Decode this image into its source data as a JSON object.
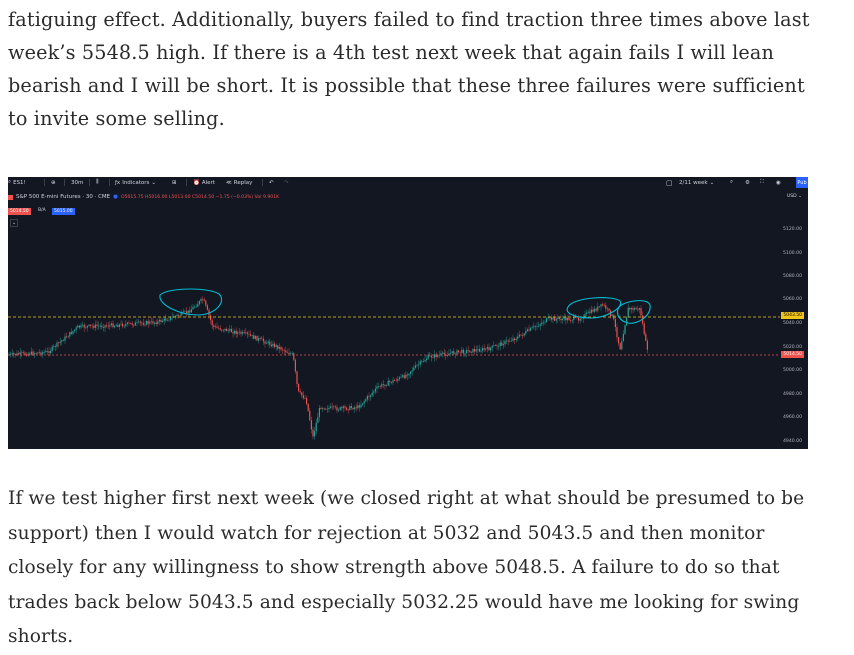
{
  "article": {
    "para1": "fatiguing effect. Additionally, buyers failed to find traction three times above last week’s 5548.5 high. If there is a 4th test next week that again fails I will lean bearish and I will be short. It is possible that these three failures were sufficient to invite some selling.",
    "para2": "If we test higher first next week (we closed right at what should be presumed to be support) then I would watch for rejection at 5032 and 5043.5 and then monitor closely for any willingness to show strength above 5048.5. A failure to do so that trades back below 5043.5 and especially 5032.25 would have me looking for swing shorts."
  },
  "toolbar": {
    "symbol": "ES1!",
    "interval": "30m",
    "indicators": "Indicators",
    "alert": "Alert",
    "replay": "Replay",
    "range": "2/11 week",
    "publish": "Pub"
  },
  "legend": {
    "title": "S&P 500 E-mini Futures · 30 · CME",
    "ohlc": "O5015.75 H5016.00 L5013.00 C5014.50 −1.75 (−0.03%) Vol 9.901K",
    "sell_price": "5014.50",
    "sell_label": "B/A",
    "buy_price": "5015.00"
  },
  "price_axis": {
    "currency": "USD",
    "labels": [
      "5120.00",
      "5100.00",
      "5080.00",
      "5060.00",
      "5040.00",
      "5020.00",
      "5000.00",
      "4980.00",
      "4960.00",
      "4940.00"
    ],
    "tag_yellow": "5043.50",
    "tag_red": "5014.50"
  },
  "colors": {
    "bg": "#131722",
    "up": "#26a69a",
    "down": "#ef5350",
    "annotation": "#00bcd4",
    "yellow_line": "#f0c419"
  }
}
